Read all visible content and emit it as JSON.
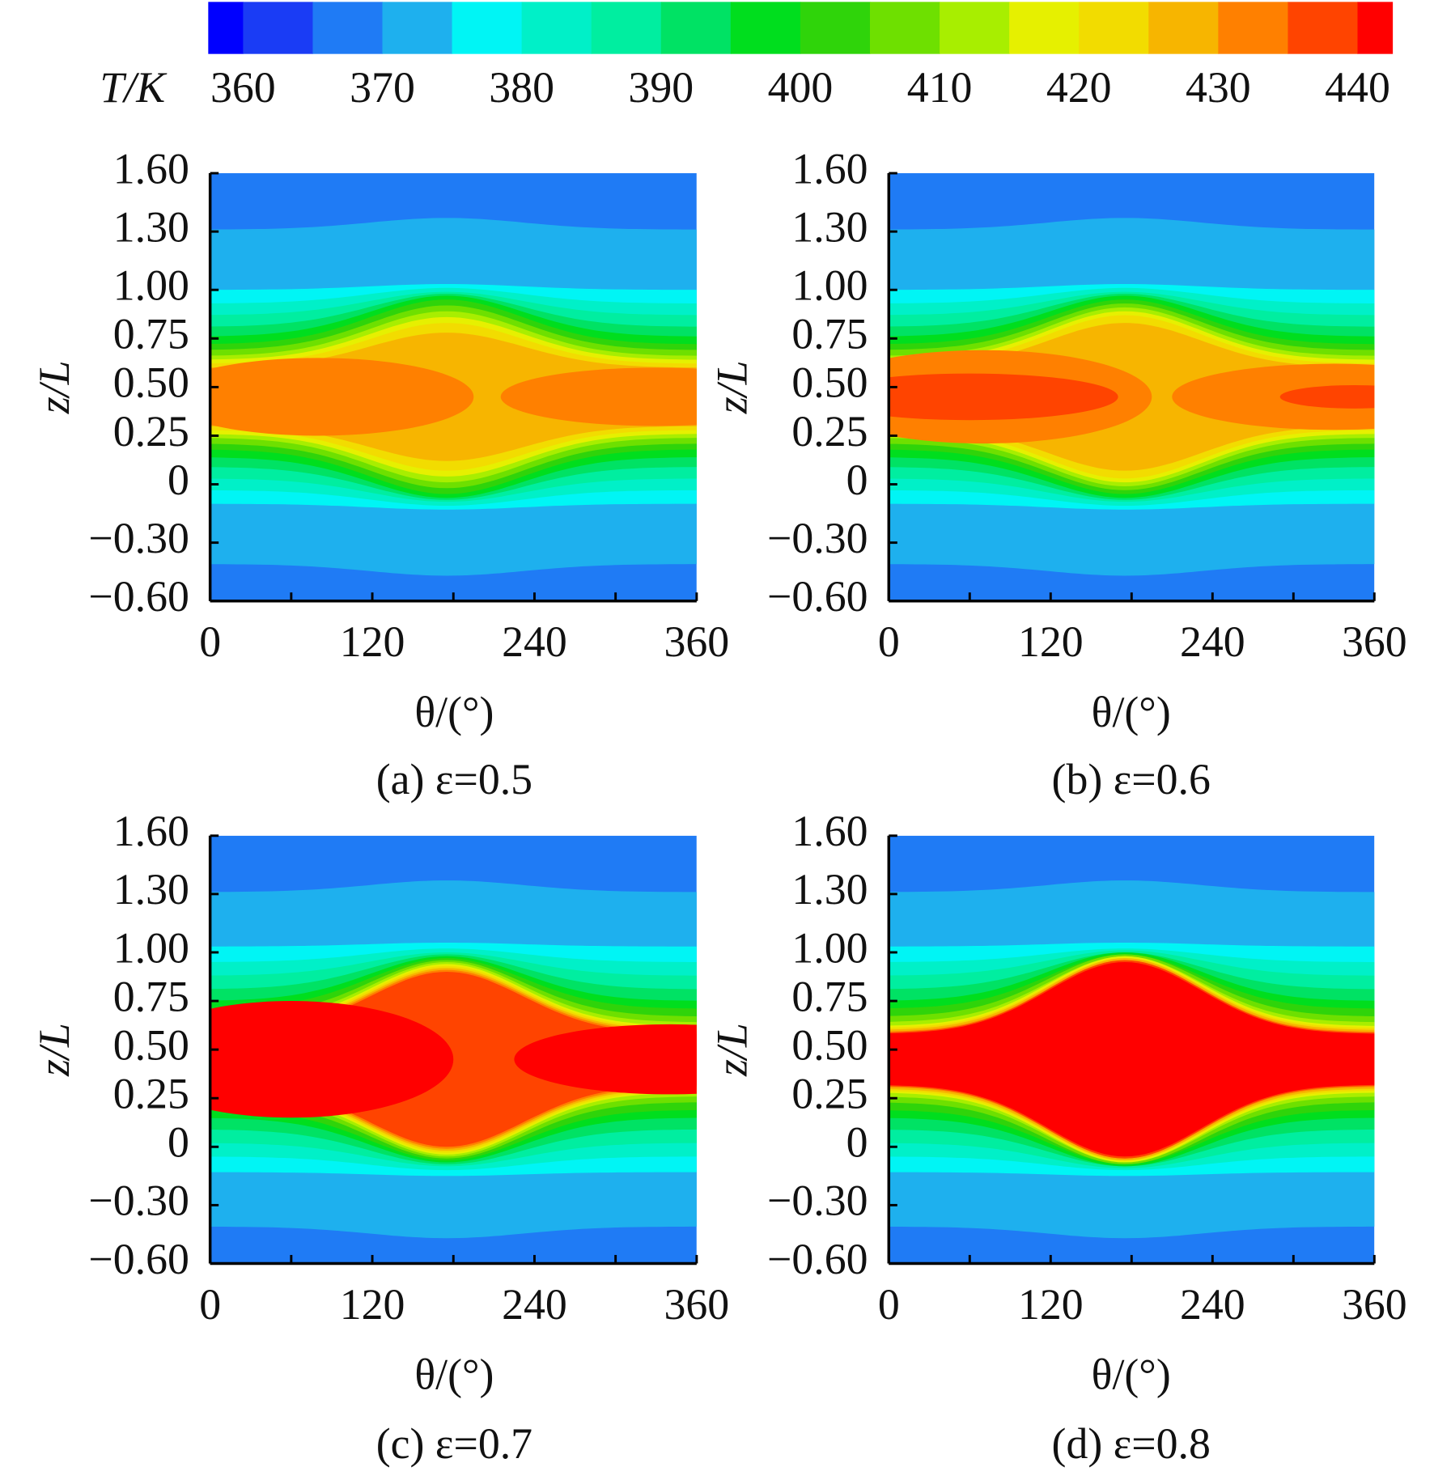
{
  "chart_data": [
    {
      "type": "contour",
      "title": "(a) ε=0.5",
      "x_label": "θ/(°)",
      "y_label": "z/L",
      "xlim": [
        0,
        360
      ],
      "xticks": [
        0,
        120,
        240,
        360
      ],
      "xminorticks": [
        60,
        180,
        300
      ],
      "ylim": [
        -0.6,
        1.6
      ],
      "yticks": [
        {
          "value": 1.6,
          "label": "1.60"
        },
        {
          "value": 1.3,
          "label": "1.30"
        },
        {
          "value": 1.0,
          "label": "1.00"
        },
        0.75,
        {
          "value": 0.5,
          "label": "0.50"
        },
        0.25,
        0,
        {
          "value": -0.3,
          "label": "−0.30"
        },
        {
          "value": -0.6,
          "label": "−0.60"
        }
      ]
    },
    {
      "type": "contour",
      "title": "(b) ε=0.6",
      "x_label": "θ/(°)",
      "y_label": "z/L",
      "xlim": [
        0,
        360
      ],
      "xticks": [
        0,
        120,
        240,
        360
      ],
      "xminorticks": [
        60,
        180,
        300
      ],
      "ylim": [
        -0.6,
        1.6
      ],
      "yticks": [
        {
          "value": 1.6,
          "label": "1.60"
        },
        {
          "value": 1.3,
          "label": "1.30"
        },
        {
          "value": 1.0,
          "label": "1.00"
        },
        0.75,
        {
          "value": 0.5,
          "label": "0.50"
        },
        0.25,
        0,
        {
          "value": -0.3,
          "label": "−0.30"
        },
        {
          "value": -0.6,
          "label": "−0.60"
        }
      ]
    },
    {
      "type": "contour",
      "title": "(c) ε=0.7",
      "x_label": "θ/(°)",
      "y_label": "z/L",
      "xlim": [
        0,
        360
      ],
      "xticks": [
        0,
        120,
        240,
        360
      ],
      "xminorticks": [
        60,
        180,
        300
      ],
      "ylim": [
        -0.6,
        1.6
      ],
      "yticks": [
        {
          "value": 1.6,
          "label": "1.60"
        },
        {
          "value": 1.3,
          "label": "1.30"
        },
        {
          "value": 1.0,
          "label": "1.00"
        },
        0.75,
        {
          "value": 0.5,
          "label": "0.50"
        },
        0.25,
        0,
        {
          "value": -0.3,
          "label": "−0.30"
        },
        {
          "value": -0.6,
          "label": "−0.60"
        }
      ]
    },
    {
      "type": "contour",
      "title": "(d) ε=0.8",
      "x_label": "θ/(°)",
      "y_label": "z/L",
      "xlim": [
        0,
        360
      ],
      "xticks": [
        0,
        120,
        240,
        360
      ],
      "xminorticks": [
        60,
        180,
        300
      ],
      "ylim": [
        -0.6,
        1.6
      ],
      "yticks": [
        {
          "value": 1.6,
          "label": "1.60"
        },
        {
          "value": 1.3,
          "label": "1.30"
        },
        {
          "value": 1.0,
          "label": "1.00"
        },
        0.75,
        {
          "value": 0.5,
          "label": "0.50"
        },
        0.25,
        0,
        {
          "value": -0.3,
          "label": "−0.30"
        },
        {
          "value": -0.6,
          "label": "−0.60"
        }
      ]
    }
  ],
  "colorbar": {
    "title": "T/K",
    "ticks": [
      360,
      370,
      380,
      390,
      400,
      410,
      420,
      430,
      440
    ],
    "levels": [
      357.5,
      360,
      365,
      370,
      375,
      380,
      385,
      390,
      395,
      400,
      405,
      410,
      415,
      420,
      425,
      430,
      435,
      440,
      442.5
    ],
    "colors": [
      "#0000ff",
      "#1a3cf5",
      "#1f7bf5",
      "#1eb0ee",
      "#00f5f5",
      "#00f0c8",
      "#00eea0",
      "#00e264",
      "#00de1e",
      "#2fd40a",
      "#6ee000",
      "#a8ee00",
      "#e6f000",
      "#f2dc00",
      "#f7b500",
      "#ff8000",
      "#ff4400",
      "#ff0000"
    ]
  }
}
